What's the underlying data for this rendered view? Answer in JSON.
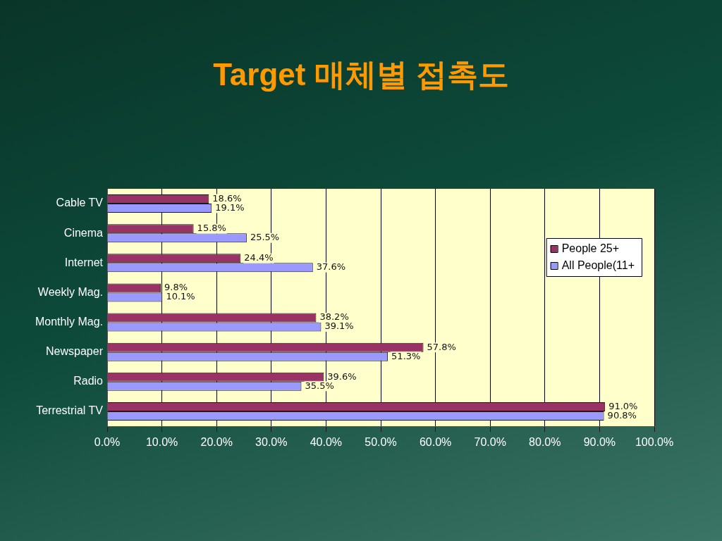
{
  "chart_data": {
    "type": "bar",
    "orientation": "horizontal",
    "title": "Target 매체별 접촉도",
    "categories": [
      "Cable TV",
      "Cinema",
      "Internet",
      "Weekly Mag.",
      "Monthly Mag.",
      "Newspaper",
      "Radio",
      "Terrestrial TV"
    ],
    "series": [
      {
        "name": "People 25+",
        "color": "#993366",
        "values": [
          18.6,
          15.8,
          24.4,
          9.8,
          38.2,
          57.8,
          39.6,
          91.0
        ],
        "value_labels": [
          "18.6%",
          "15.8%",
          "24.4%",
          "9.8%",
          "38.2%",
          "57.8%",
          "39.6%",
          "91.0%"
        ]
      },
      {
        "name": "All People(11+",
        "color": "#9999ff",
        "values": [
          19.1,
          25.5,
          37.6,
          10.1,
          39.1,
          51.3,
          35.5,
          90.8
        ],
        "value_labels": [
          "19.1%",
          "25.5%",
          "37.6%",
          "10.1%",
          "39.1%",
          "51.3%",
          "35.5%",
          "90.8%"
        ]
      }
    ],
    "xlim": [
      0,
      100
    ],
    "xticks": [
      {
        "value": 0,
        "label": "0.0%"
      },
      {
        "value": 10,
        "label": "10.0%"
      },
      {
        "value": 20,
        "label": "20.0%"
      },
      {
        "value": 30,
        "label": "30.0%"
      },
      {
        "value": 40,
        "label": "40.0%"
      },
      {
        "value": 50,
        "label": "50.0%"
      },
      {
        "value": 60,
        "label": "60.0%"
      },
      {
        "value": 70,
        "label": "70.0%"
      },
      {
        "value": 80,
        "label": "80.0%"
      },
      {
        "value": 90,
        "label": "90.0%"
      },
      {
        "value": 100,
        "label": "100.0%"
      }
    ],
    "grid": "x",
    "legend": "top right"
  }
}
